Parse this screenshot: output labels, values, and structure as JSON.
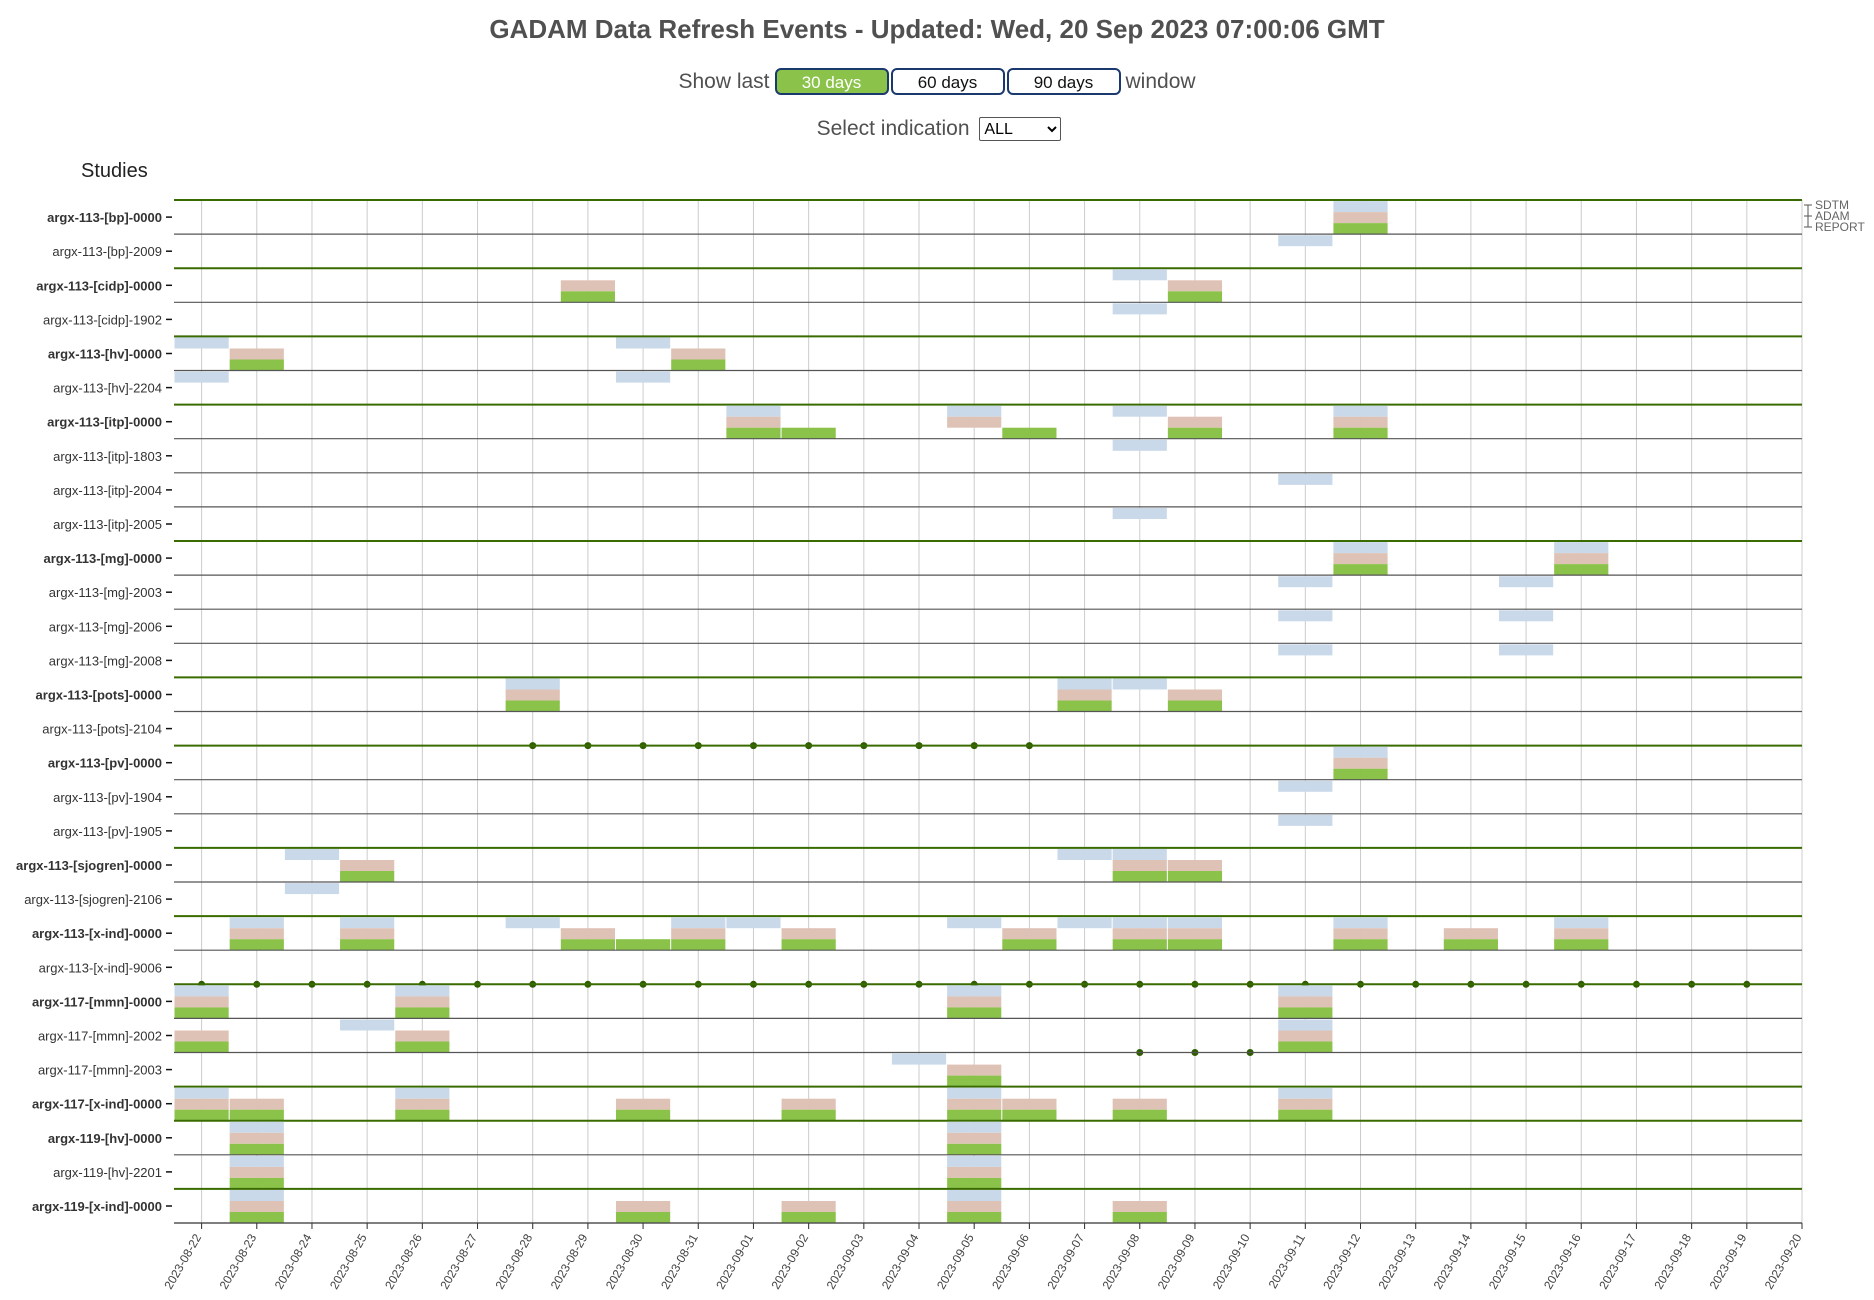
{
  "title": "GADAM Data Refresh Events - Updated: Wed, 20 Sep 2023 07:00:06 GMT",
  "window_control": {
    "prefix": "Show last",
    "suffix": "window",
    "options": [
      "30 days",
      "60 days",
      "90 days"
    ],
    "active": "30 days"
  },
  "indication_control": {
    "label": "Select indication",
    "selected": "ALL"
  },
  "studies_heading": "Studies",
  "colors": {
    "SDTM": "#c9d9ea",
    "ADAM": "#dfc2b6",
    "REPORT": "#8bc34a",
    "group_line": "#3a6b00",
    "row_line": "#555555",
    "dot": "#2e5d00",
    "grid": "#cccccc"
  },
  "chart_data": {
    "type": "timeline",
    "dates": [
      "2023-08-22",
      "2023-08-23",
      "2023-08-24",
      "2023-08-25",
      "2023-08-26",
      "2023-08-27",
      "2023-08-28",
      "2023-08-29",
      "2023-08-30",
      "2023-08-31",
      "2023-09-01",
      "2023-09-02",
      "2023-09-03",
      "2023-09-04",
      "2023-09-05",
      "2023-09-06",
      "2023-09-07",
      "2023-09-08",
      "2023-09-09",
      "2023-09-10",
      "2023-09-11",
      "2023-09-12",
      "2023-09-13",
      "2023-09-14",
      "2023-09-15",
      "2023-09-16",
      "2023-09-17",
      "2023-09-18",
      "2023-09-19",
      "2023-09-20"
    ],
    "legend": [
      "SDTM",
      "ADAM",
      "REPORT"
    ],
    "studies": [
      {
        "name": "argx-113-[bp]-0000",
        "bold": true,
        "group_start": true,
        "events": [
          {
            "date": "2023-09-12",
            "types": [
              "SDTM",
              "ADAM",
              "REPORT"
            ]
          }
        ]
      },
      {
        "name": "argx-113-[bp]-2009",
        "bold": false,
        "events": [
          {
            "date": "2023-09-11",
            "types": [
              "SDTM"
            ]
          }
        ]
      },
      {
        "name": "argx-113-[cidp]-0000",
        "bold": true,
        "group_start": true,
        "events": [
          {
            "date": "2023-08-29",
            "types": [
              "ADAM",
              "REPORT"
            ]
          },
          {
            "date": "2023-09-08",
            "types": [
              "SDTM"
            ]
          },
          {
            "date": "2023-09-09",
            "types": [
              "ADAM",
              "REPORT"
            ]
          }
        ]
      },
      {
        "name": "argx-113-[cidp]-1902",
        "bold": false,
        "events": [
          {
            "date": "2023-09-08",
            "types": [
              "SDTM"
            ]
          }
        ]
      },
      {
        "name": "argx-113-[hv]-0000",
        "bold": true,
        "group_start": true,
        "events": [
          {
            "date": "2023-08-22",
            "types": [
              "SDTM"
            ]
          },
          {
            "date": "2023-08-23",
            "types": [
              "ADAM",
              "REPORT"
            ]
          },
          {
            "date": "2023-08-30",
            "types": [
              "SDTM"
            ]
          },
          {
            "date": "2023-08-31",
            "types": [
              "ADAM",
              "REPORT"
            ]
          }
        ]
      },
      {
        "name": "argx-113-[hv]-2204",
        "bold": false,
        "events": [
          {
            "date": "2023-08-22",
            "types": [
              "SDTM"
            ]
          },
          {
            "date": "2023-08-30",
            "types": [
              "SDTM"
            ]
          }
        ]
      },
      {
        "name": "argx-113-[itp]-0000",
        "bold": true,
        "group_start": true,
        "events": [
          {
            "date": "2023-09-01",
            "types": [
              "SDTM",
              "ADAM",
              "REPORT"
            ]
          },
          {
            "date": "2023-09-02",
            "types": [
              "REPORT"
            ]
          },
          {
            "date": "2023-09-05",
            "types": [
              "SDTM",
              "ADAM"
            ]
          },
          {
            "date": "2023-09-06",
            "types": [
              "REPORT"
            ]
          },
          {
            "date": "2023-09-08",
            "types": [
              "SDTM"
            ]
          },
          {
            "date": "2023-09-09",
            "types": [
              "ADAM",
              "REPORT"
            ]
          },
          {
            "date": "2023-09-12",
            "types": [
              "SDTM",
              "ADAM",
              "REPORT"
            ]
          }
        ]
      },
      {
        "name": "argx-113-[itp]-1803",
        "bold": false,
        "events": [
          {
            "date": "2023-09-08",
            "types": [
              "SDTM"
            ]
          }
        ]
      },
      {
        "name": "argx-113-[itp]-2004",
        "bold": false,
        "events": [
          {
            "date": "2023-09-11",
            "types": [
              "SDTM"
            ]
          }
        ]
      },
      {
        "name": "argx-113-[itp]-2005",
        "bold": false,
        "events": [
          {
            "date": "2023-09-08",
            "types": [
              "SDTM"
            ]
          }
        ]
      },
      {
        "name": "argx-113-[mg]-0000",
        "bold": true,
        "group_start": true,
        "events": [
          {
            "date": "2023-09-12",
            "types": [
              "SDTM",
              "ADAM",
              "REPORT"
            ]
          },
          {
            "date": "2023-09-16",
            "types": [
              "SDTM",
              "ADAM",
              "REPORT"
            ]
          }
        ]
      },
      {
        "name": "argx-113-[mg]-2003",
        "bold": false,
        "events": [
          {
            "date": "2023-09-11",
            "types": [
              "SDTM"
            ]
          },
          {
            "date": "2023-09-15",
            "types": [
              "SDTM"
            ]
          }
        ]
      },
      {
        "name": "argx-113-[mg]-2006",
        "bold": false,
        "events": [
          {
            "date": "2023-09-11",
            "types": [
              "SDTM"
            ]
          },
          {
            "date": "2023-09-15",
            "types": [
              "SDTM"
            ]
          }
        ]
      },
      {
        "name": "argx-113-[mg]-2008",
        "bold": false,
        "events": [
          {
            "date": "2023-09-11",
            "types": [
              "SDTM"
            ]
          },
          {
            "date": "2023-09-15",
            "types": [
              "SDTM"
            ]
          }
        ]
      },
      {
        "name": "argx-113-[pots]-0000",
        "bold": true,
        "group_start": true,
        "events": [
          {
            "date": "2023-08-28",
            "types": [
              "SDTM",
              "ADAM",
              "REPORT"
            ]
          },
          {
            "date": "2023-09-07",
            "types": [
              "SDTM",
              "ADAM",
              "REPORT"
            ]
          },
          {
            "date": "2023-09-08",
            "types": [
              "SDTM"
            ]
          },
          {
            "date": "2023-09-09",
            "types": [
              "ADAM",
              "REPORT"
            ]
          }
        ]
      },
      {
        "name": "argx-113-[pots]-2104",
        "bold": false,
        "events": [],
        "dots": [
          "2023-08-28",
          "2023-08-29",
          "2023-08-30",
          "2023-08-31",
          "2023-09-01",
          "2023-09-02",
          "2023-09-03",
          "2023-09-04",
          "2023-09-05",
          "2023-09-06"
        ]
      },
      {
        "name": "argx-113-[pv]-0000",
        "bold": true,
        "group_start": true,
        "events": [
          {
            "date": "2023-09-12",
            "types": [
              "SDTM",
              "ADAM",
              "REPORT"
            ]
          }
        ]
      },
      {
        "name": "argx-113-[pv]-1904",
        "bold": false,
        "events": [
          {
            "date": "2023-09-11",
            "types": [
              "SDTM"
            ]
          }
        ]
      },
      {
        "name": "argx-113-[pv]-1905",
        "bold": false,
        "events": [
          {
            "date": "2023-09-11",
            "types": [
              "SDTM"
            ]
          }
        ]
      },
      {
        "name": "argx-113-[sjogren]-0000",
        "bold": true,
        "group_start": true,
        "events": [
          {
            "date": "2023-08-24",
            "types": [
              "SDTM"
            ]
          },
          {
            "date": "2023-08-25",
            "types": [
              "ADAM",
              "REPORT"
            ]
          },
          {
            "date": "2023-09-07",
            "types": [
              "SDTM"
            ]
          },
          {
            "date": "2023-09-08",
            "types": [
              "SDTM",
              "ADAM",
              "REPORT"
            ]
          },
          {
            "date": "2023-09-09",
            "types": [
              "ADAM",
              "REPORT"
            ]
          }
        ]
      },
      {
        "name": "argx-113-[sjogren]-2106",
        "bold": false,
        "events": [
          {
            "date": "2023-08-24",
            "types": [
              "SDTM"
            ]
          }
        ]
      },
      {
        "name": "argx-113-[x-ind]-0000",
        "bold": true,
        "group_start": true,
        "events": [
          {
            "date": "2023-08-23",
            "types": [
              "SDTM",
              "ADAM",
              "REPORT"
            ]
          },
          {
            "date": "2023-08-25",
            "types": [
              "SDTM",
              "ADAM",
              "REPORT"
            ]
          },
          {
            "date": "2023-08-28",
            "types": [
              "SDTM"
            ]
          },
          {
            "date": "2023-08-29",
            "types": [
              "ADAM",
              "REPORT"
            ]
          },
          {
            "date": "2023-08-30",
            "types": [
              "REPORT"
            ]
          },
          {
            "date": "2023-08-31",
            "types": [
              "SDTM",
              "ADAM",
              "REPORT"
            ]
          },
          {
            "date": "2023-09-01",
            "types": [
              "SDTM"
            ]
          },
          {
            "date": "2023-09-02",
            "types": [
              "ADAM",
              "REPORT"
            ]
          },
          {
            "date": "2023-09-05",
            "types": [
              "SDTM"
            ]
          },
          {
            "date": "2023-09-06",
            "types": [
              "ADAM",
              "REPORT"
            ]
          },
          {
            "date": "2023-09-07",
            "types": [
              "SDTM"
            ]
          },
          {
            "date": "2023-09-08",
            "types": [
              "SDTM",
              "ADAM",
              "REPORT"
            ]
          },
          {
            "date": "2023-09-09",
            "types": [
              "SDTM",
              "ADAM",
              "REPORT"
            ]
          },
          {
            "date": "2023-09-12",
            "types": [
              "SDTM",
              "ADAM",
              "REPORT"
            ]
          },
          {
            "date": "2023-09-14",
            "types": [
              "ADAM",
              "REPORT"
            ]
          },
          {
            "date": "2023-09-16",
            "types": [
              "SDTM",
              "ADAM",
              "REPORT"
            ]
          }
        ]
      },
      {
        "name": "argx-113-[x-ind]-9006",
        "bold": false,
        "events": [],
        "dots": [
          "2023-08-22",
          "2023-08-23",
          "2023-08-24",
          "2023-08-25",
          "2023-08-26",
          "2023-08-27",
          "2023-08-28",
          "2023-08-29",
          "2023-08-30",
          "2023-08-31",
          "2023-09-01",
          "2023-09-02",
          "2023-09-03",
          "2023-09-04",
          "2023-09-05",
          "2023-09-06",
          "2023-09-07",
          "2023-09-08",
          "2023-09-09",
          "2023-09-10",
          "2023-09-11",
          "2023-09-12",
          "2023-09-13",
          "2023-09-14",
          "2023-09-15",
          "2023-09-16",
          "2023-09-17",
          "2023-09-18",
          "2023-09-19"
        ]
      },
      {
        "name": "argx-117-[mmn]-0000",
        "bold": true,
        "group_start": true,
        "events": [
          {
            "date": "2023-08-22",
            "types": [
              "SDTM",
              "ADAM",
              "REPORT"
            ]
          },
          {
            "date": "2023-08-26",
            "types": [
              "SDTM",
              "ADAM",
              "REPORT"
            ]
          },
          {
            "date": "2023-09-05",
            "types": [
              "SDTM",
              "ADAM",
              "REPORT"
            ]
          },
          {
            "date": "2023-09-11",
            "types": [
              "SDTM",
              "ADAM",
              "REPORT"
            ]
          }
        ]
      },
      {
        "name": "argx-117-[mmn]-2002",
        "bold": false,
        "events": [
          {
            "date": "2023-08-22",
            "types": [
              "ADAM",
              "REPORT"
            ]
          },
          {
            "date": "2023-08-25",
            "types": [
              "SDTM"
            ]
          },
          {
            "date": "2023-08-26",
            "types": [
              "ADAM",
              "REPORT"
            ]
          },
          {
            "date": "2023-09-11",
            "types": [
              "SDTM",
              "ADAM",
              "REPORT"
            ]
          }
        ],
        "dots": [
          "2023-09-08",
          "2023-09-09",
          "2023-09-10"
        ]
      },
      {
        "name": "argx-117-[mmn]-2003",
        "bold": false,
        "events": [
          {
            "date": "2023-09-04",
            "types": [
              "SDTM"
            ]
          },
          {
            "date": "2023-09-05",
            "types": [
              "ADAM",
              "REPORT"
            ]
          }
        ]
      },
      {
        "name": "argx-117-[x-ind]-0000",
        "bold": true,
        "group_start": true,
        "events": [
          {
            "date": "2023-08-22",
            "types": [
              "SDTM",
              "ADAM",
              "REPORT"
            ]
          },
          {
            "date": "2023-08-23",
            "types": [
              "ADAM",
              "REPORT"
            ]
          },
          {
            "date": "2023-08-26",
            "types": [
              "SDTM",
              "ADAM",
              "REPORT"
            ]
          },
          {
            "date": "2023-08-30",
            "types": [
              "ADAM",
              "REPORT"
            ]
          },
          {
            "date": "2023-09-02",
            "types": [
              "ADAM",
              "REPORT"
            ]
          },
          {
            "date": "2023-09-05",
            "types": [
              "SDTM",
              "ADAM",
              "REPORT"
            ]
          },
          {
            "date": "2023-09-06",
            "types": [
              "ADAM",
              "REPORT"
            ]
          },
          {
            "date": "2023-09-08",
            "types": [
              "ADAM",
              "REPORT"
            ]
          },
          {
            "date": "2023-09-11",
            "types": [
              "SDTM",
              "ADAM",
              "REPORT"
            ]
          }
        ]
      },
      {
        "name": "argx-119-[hv]-0000",
        "bold": true,
        "group_start": true,
        "events": [
          {
            "date": "2023-08-23",
            "types": [
              "SDTM",
              "ADAM",
              "REPORT"
            ]
          },
          {
            "date": "2023-09-05",
            "types": [
              "SDTM",
              "ADAM",
              "REPORT"
            ]
          }
        ]
      },
      {
        "name": "argx-119-[hv]-2201",
        "bold": false,
        "events": [
          {
            "date": "2023-08-23",
            "types": [
              "SDTM",
              "ADAM",
              "REPORT"
            ]
          },
          {
            "date": "2023-09-05",
            "types": [
              "SDTM",
              "ADAM",
              "REPORT"
            ]
          }
        ]
      },
      {
        "name": "argx-119-[x-ind]-0000",
        "bold": true,
        "group_start": true,
        "events": [
          {
            "date": "2023-08-23",
            "types": [
              "SDTM",
              "ADAM",
              "REPORT"
            ]
          },
          {
            "date": "2023-08-30",
            "types": [
              "ADAM",
              "REPORT"
            ]
          },
          {
            "date": "2023-09-02",
            "types": [
              "ADAM",
              "REPORT"
            ]
          },
          {
            "date": "2023-09-05",
            "types": [
              "SDTM",
              "ADAM",
              "REPORT"
            ]
          },
          {
            "date": "2023-09-08",
            "types": [
              "ADAM",
              "REPORT"
            ]
          }
        ]
      }
    ]
  }
}
